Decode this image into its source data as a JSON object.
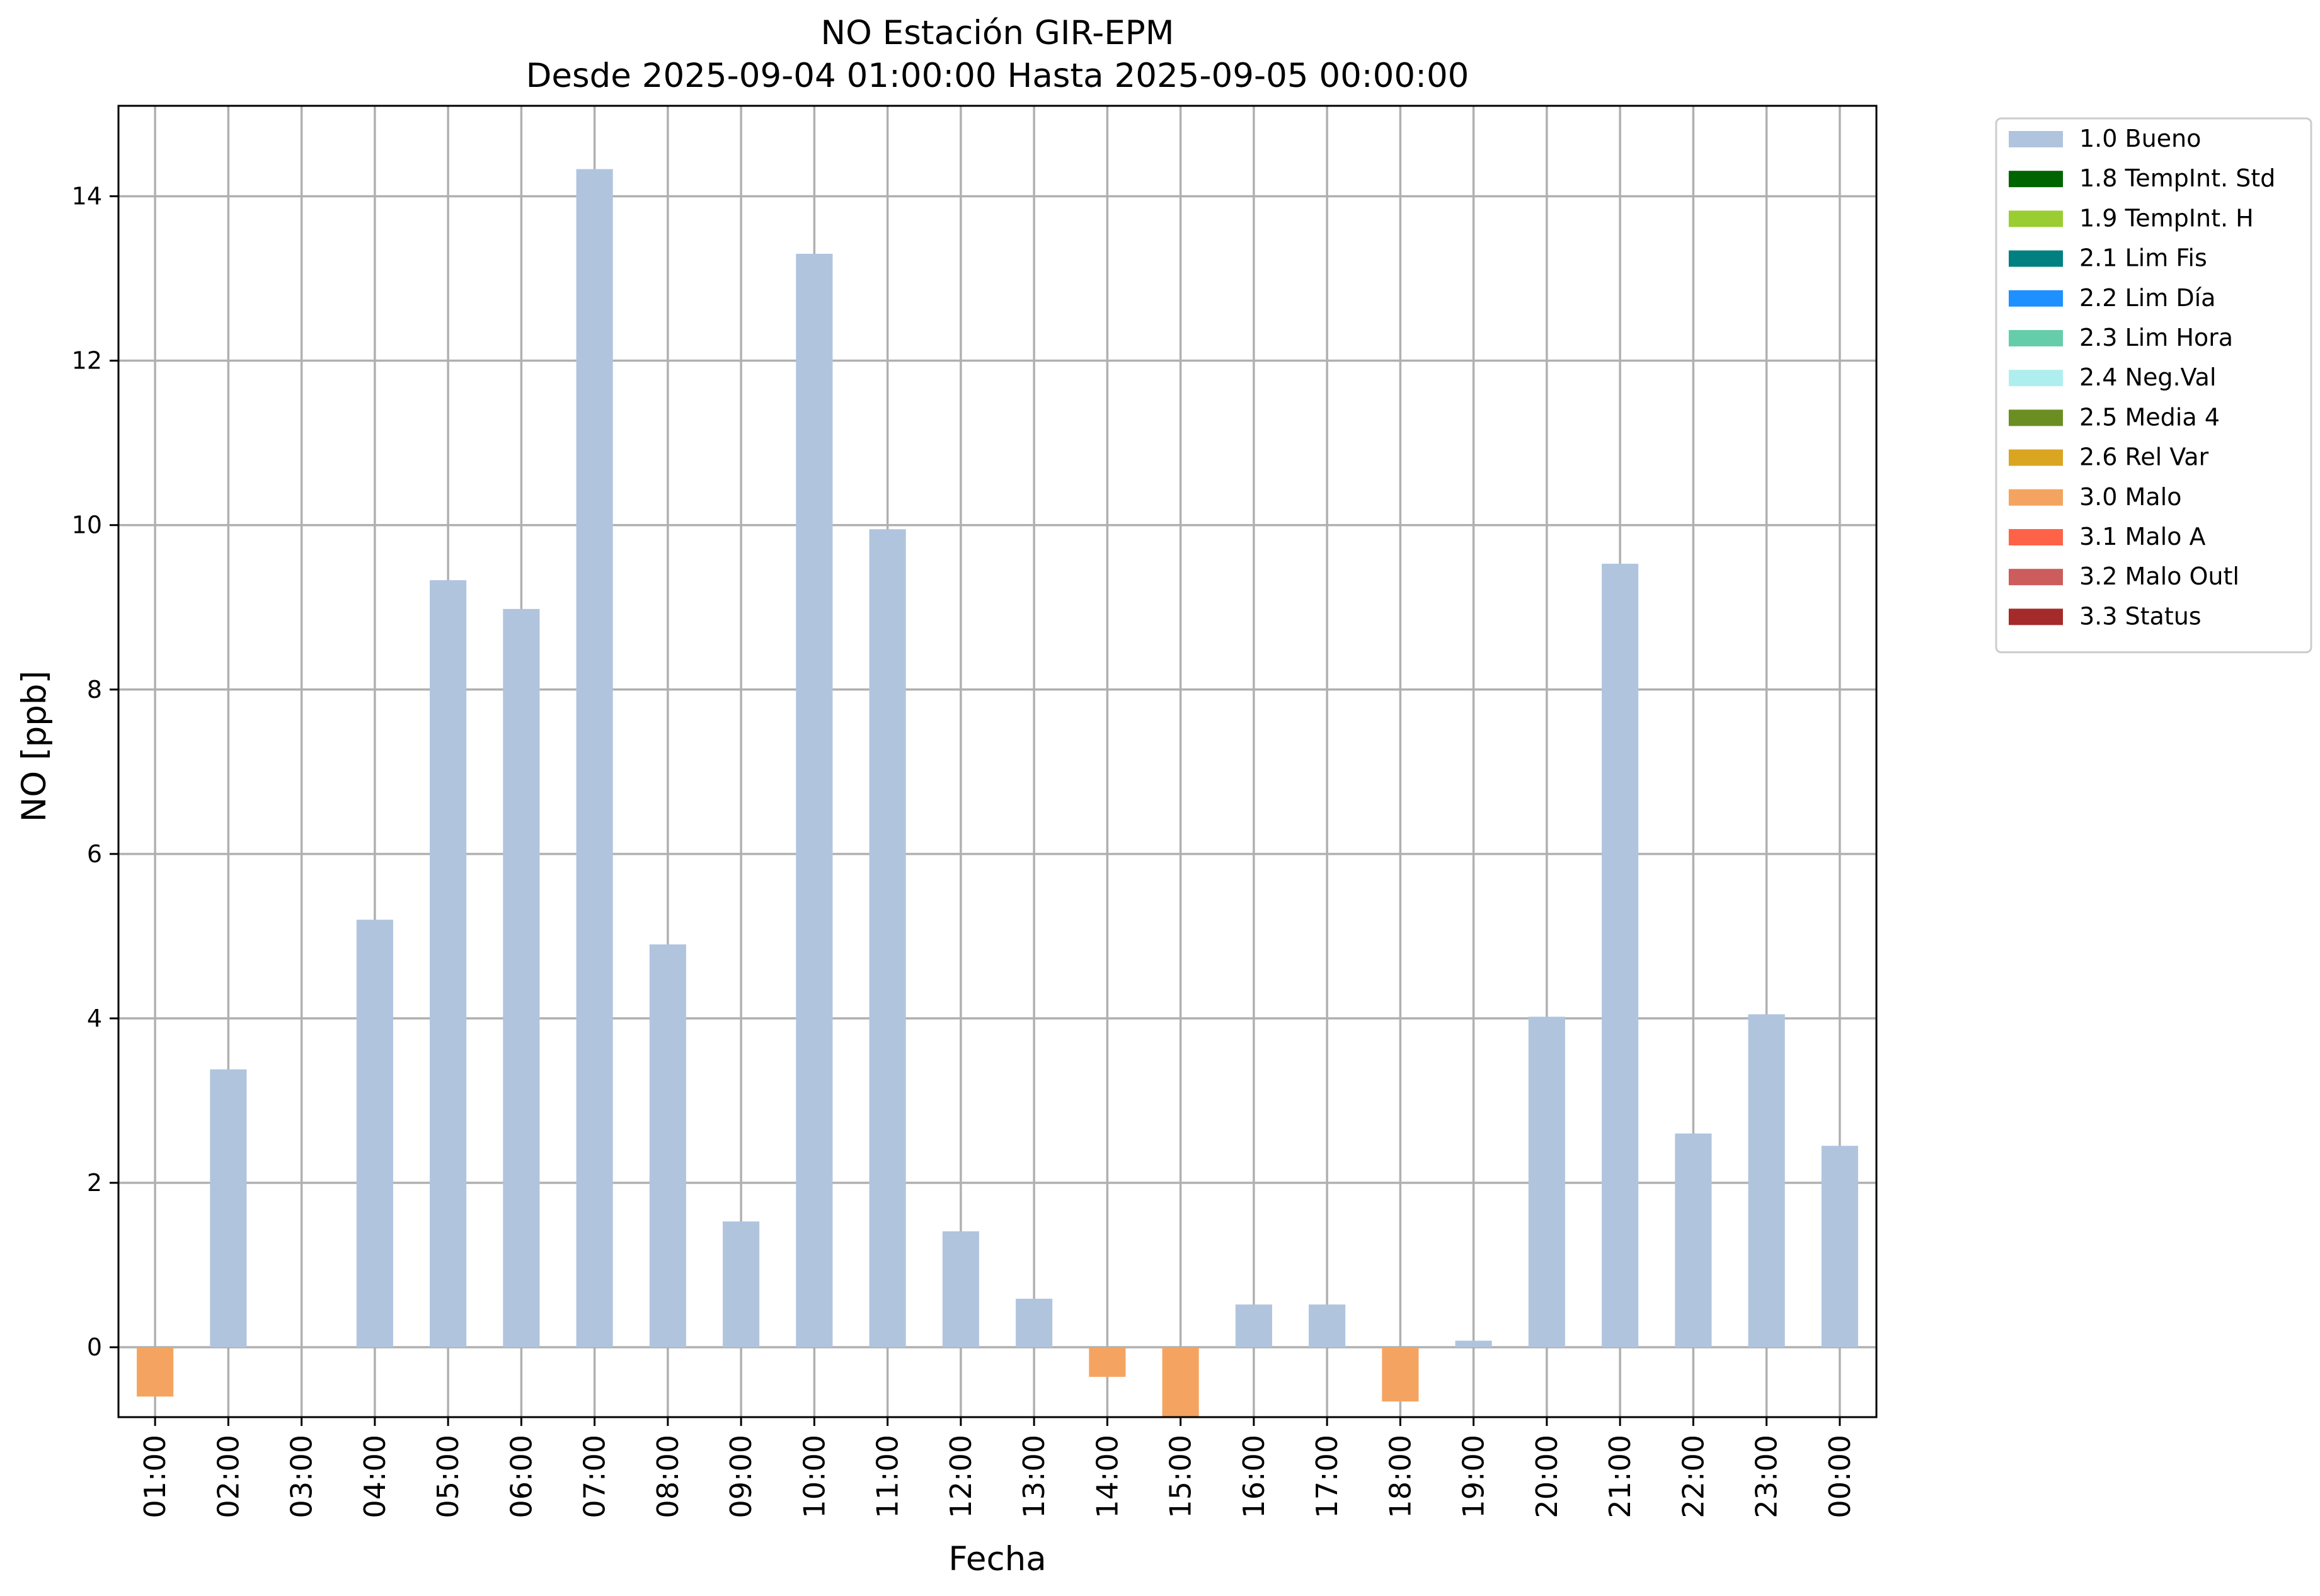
{
  "chart_data": {
    "type": "bar",
    "title": "NO Estación GIR-EPM",
    "subtitle": "Desde 2025-09-04 01:00:00 Hasta 2025-09-05 00:00:00",
    "xlabel": "Fecha",
    "ylabel": "NO [ppb]",
    "ylim": [
      -0.85,
      15.1
    ],
    "yticks": [
      0,
      2,
      4,
      6,
      8,
      10,
      12,
      14
    ],
    "grid": true,
    "legend_position": "outside-top-right",
    "categories": [
      "01:00",
      "02:00",
      "03:00",
      "04:00",
      "05:00",
      "06:00",
      "07:00",
      "08:00",
      "09:00",
      "10:00",
      "11:00",
      "12:00",
      "13:00",
      "14:00",
      "15:00",
      "16:00",
      "17:00",
      "18:00",
      "19:00",
      "20:00",
      "21:00",
      "22:00",
      "23:00",
      "00:00"
    ],
    "series": [
      {
        "name": "1.0 Bueno",
        "color": "#b0c4de",
        "values": [
          null,
          3.38,
          null,
          5.2,
          9.33,
          8.98,
          14.33,
          4.9,
          1.53,
          13.3,
          9.95,
          1.41,
          0.59,
          null,
          null,
          0.52,
          0.52,
          null,
          0.08,
          4.02,
          9.53,
          2.6,
          4.05,
          2.45
        ]
      },
      {
        "name": "3.0 Malo",
        "color": "#f4a460",
        "values": [
          -0.6,
          null,
          null,
          null,
          null,
          null,
          null,
          null,
          null,
          null,
          null,
          null,
          null,
          -0.36,
          -0.85,
          null,
          null,
          -0.66,
          null,
          null,
          null,
          null,
          null,
          null
        ]
      }
    ],
    "legend": [
      {
        "label": "1.0 Bueno",
        "color": "#b0c4de"
      },
      {
        "label": "1.8 TempInt. Std",
        "color": "#006400"
      },
      {
        "label": "1.9 TempInt. H",
        "color": "#9acd32"
      },
      {
        "label": "2.1 Lim Fis",
        "color": "#008080"
      },
      {
        "label": "2.2 Lim Día",
        "color": "#1e90ff"
      },
      {
        "label": "2.3 Lim Hora",
        "color": "#66cdaa"
      },
      {
        "label": "2.4 Neg.Val",
        "color": "#afeeee"
      },
      {
        "label": "2.5 Media 4",
        "color": "#6b8e23"
      },
      {
        "label": "2.6 Rel Var",
        "color": "#daa520"
      },
      {
        "label": "3.0 Malo",
        "color": "#f4a460"
      },
      {
        "label": "3.1 Malo A",
        "color": "#ff6347"
      },
      {
        "label": "3.2 Malo Outl",
        "color": "#cd5c5c"
      },
      {
        "label": "3.3 Status",
        "color": "#a52a2a"
      }
    ]
  }
}
